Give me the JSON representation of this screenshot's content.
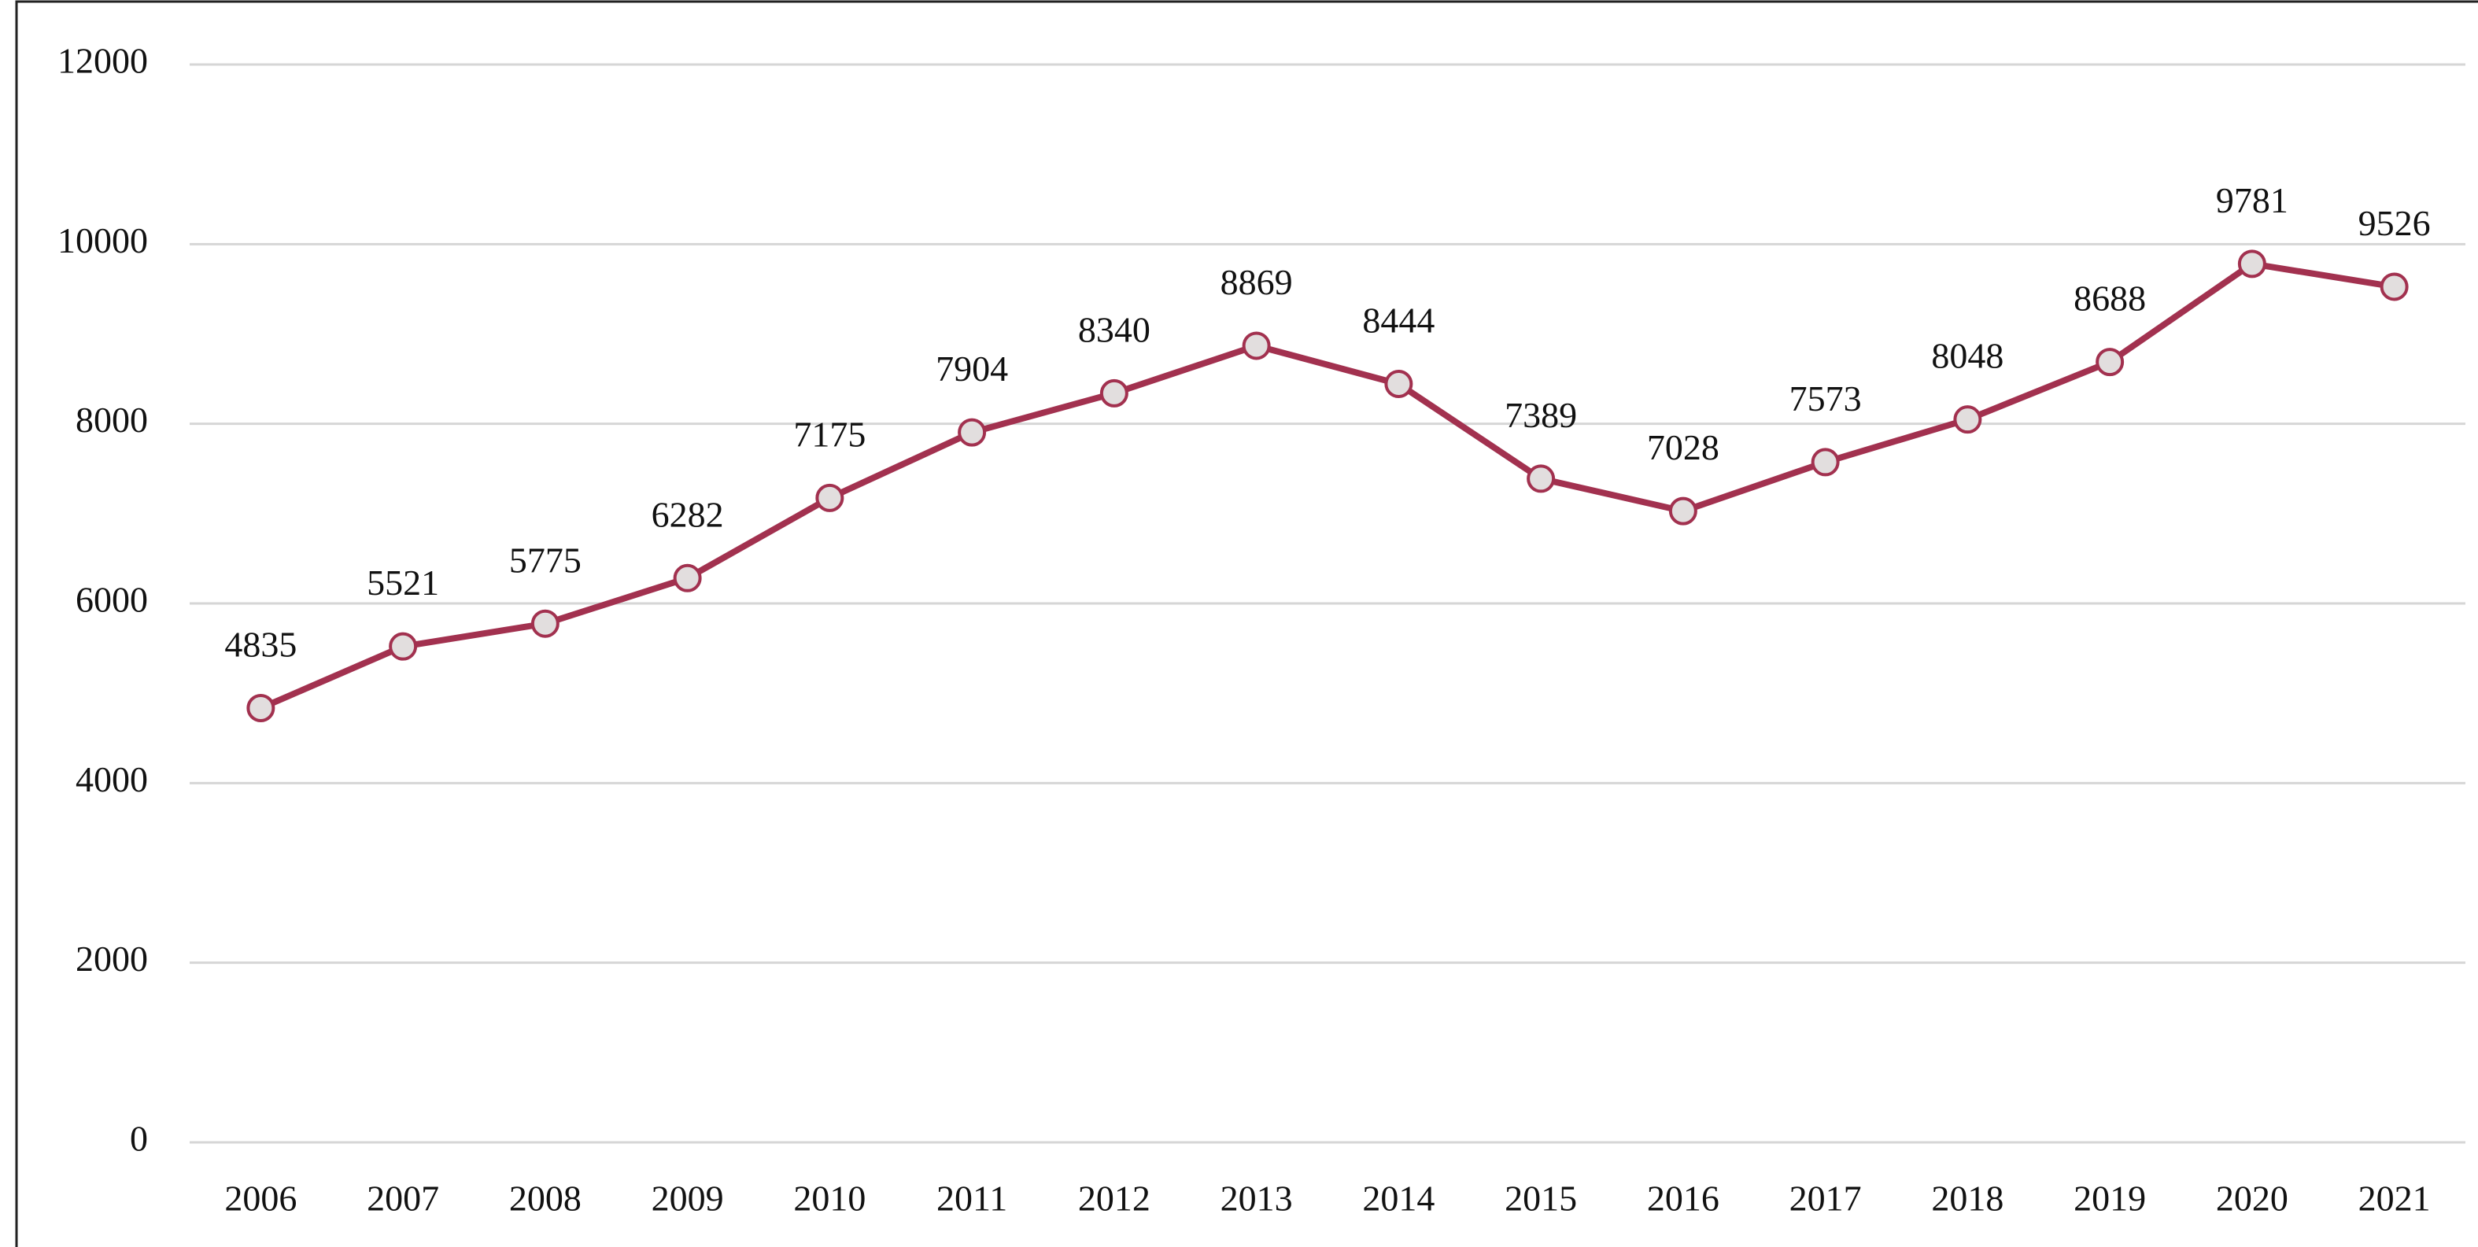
{
  "chart_data": {
    "type": "line",
    "categories": [
      "2006",
      "2007",
      "2008",
      "2009",
      "2010",
      "2011",
      "2012",
      "2013",
      "2014",
      "2015",
      "2016",
      "2017",
      "2018",
      "2019",
      "2020",
      "2021"
    ],
    "values": [
      4835,
      5521,
      5775,
      6282,
      7175,
      7904,
      8340,
      8869,
      8444,
      7389,
      7028,
      7573,
      8048,
      8688,
      9781,
      9526
    ],
    "color": "#a2314f",
    "marker_fill": "#e2dede",
    "ylim": [
      0,
      12000
    ],
    "yticks": [
      0,
      2000,
      4000,
      6000,
      8000,
      10000,
      12000
    ],
    "grid": true
  }
}
